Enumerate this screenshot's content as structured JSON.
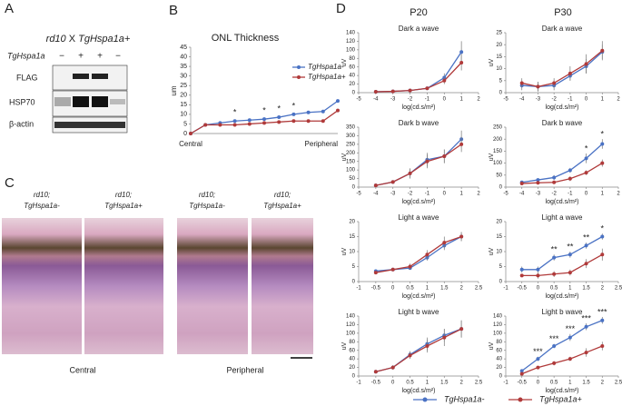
{
  "panel_labels": [
    "A",
    "B",
    "C",
    "D"
  ],
  "panel_a": {
    "title_parts": [
      "rd10",
      "X",
      "TgHspa1a+"
    ],
    "row_label": "TgHspa1a",
    "signs": [
      "−",
      "+",
      "+",
      "−"
    ],
    "blots": [
      "FLAG",
      "HSP70",
      "β-actin"
    ]
  },
  "panel_c": {
    "images": [
      {
        "line1": "rd10;",
        "line2": "TgHspa1a-"
      },
      {
        "line1": "rd10;",
        "line2": "TgHspa1a+"
      },
      {
        "line1": "rd10;",
        "line2": "TgHspa1a-"
      },
      {
        "line1": "rd10;",
        "line2": "TgHspa1a+"
      }
    ],
    "captions": [
      "Central",
      "Peripheral"
    ]
  },
  "panel_d_headers": [
    "P20",
    "P30"
  ],
  "chart_data": [
    {
      "type": "line",
      "title": "ONL Thickness",
      "ylabel": "um",
      "legend": "upper right",
      "categories": [
        "Central",
        null,
        null,
        null,
        null,
        null,
        null,
        null,
        null,
        null,
        "Peripheral"
      ],
      "ylim": [
        0,
        45
      ],
      "yticks": [
        0,
        5,
        10,
        15,
        20,
        25,
        30,
        35,
        40,
        45
      ],
      "annotations": [
        "*",
        "*",
        "*",
        "*"
      ],
      "series": [
        {
          "name": "TgHspa1a-",
          "color": "#4a72c4",
          "values": [
            0,
            4.5,
            5.5,
            6.5,
            7,
            7.5,
            8.5,
            10,
            11,
            11.5,
            17
          ]
        },
        {
          "name": "TgHspa1a+",
          "color": "#b03a3a",
          "values": [
            0,
            4.5,
            4.5,
            4.5,
            5,
            5.5,
            6,
            6.5,
            6.5,
            6.5,
            12
          ]
        }
      ]
    },
    {
      "type": "line",
      "title": "Dark a wave",
      "ylabel": "uV",
      "xlabel": "log(cd.s/m²)",
      "legend": "below",
      "x": [
        -4,
        -3,
        -2,
        -1,
        0,
        1
      ],
      "xlim": [
        -5,
        2
      ],
      "xticks": [
        -5,
        -4,
        -3,
        -2,
        -1,
        0,
        1,
        2
      ],
      "ylim": [
        0,
        140
      ],
      "yticks": [
        0,
        20,
        40,
        60,
        80,
        100,
        120,
        140
      ],
      "annotations": [],
      "series": [
        {
          "name": "TgHspa1a-",
          "color": "#4a72c4",
          "values": [
            2,
            3,
            5,
            10,
            35,
            95
          ],
          "errors": [
            1,
            1,
            2,
            4,
            10,
            25
          ]
        },
        {
          "name": "TgHspa1a+",
          "color": "#b03a3a",
          "values": [
            2,
            3,
            5,
            10,
            28,
            70
          ],
          "errors": [
            1,
            1,
            2,
            3,
            8,
            18
          ]
        }
      ]
    },
    {
      "type": "line",
      "title": "Dark a wave",
      "ylabel": "uV",
      "xlabel": "log(cd.s/m²)",
      "x": [
        -4,
        -3,
        -2,
        -1,
        0,
        1
      ],
      "xlim": [
        -5,
        2
      ],
      "xticks": [
        -5,
        -4,
        -3,
        -2,
        -1,
        0,
        1,
        2
      ],
      "ylim": [
        0,
        25
      ],
      "yticks": [
        0,
        5,
        10,
        15,
        20,
        25
      ],
      "annotations": [],
      "series": [
        {
          "name": "TgHspa1a-",
          "color": "#4a72c4",
          "values": [
            3,
            2.5,
            3,
            7,
            11,
            17
          ],
          "errors": [
            2,
            2,
            2,
            2,
            3,
            3
          ]
        },
        {
          "name": "TgHspa1a+",
          "color": "#b03a3a",
          "values": [
            4,
            2.5,
            4,
            8,
            12,
            17.5
          ],
          "errors": [
            2,
            2,
            2,
            3,
            4,
            4
          ]
        }
      ]
    },
    {
      "type": "line",
      "title": "Dark b wave",
      "ylabel": "uV",
      "xlabel": "log(cd.s/m²)",
      "x": [
        -4,
        -3,
        -2,
        -1,
        0,
        1
      ],
      "xlim": [
        -5,
        2
      ],
      "xticks": [
        -5,
        -4,
        -3,
        -2,
        -1,
        0,
        1,
        2
      ],
      "ylim": [
        0,
        350
      ],
      "yticks": [
        0,
        50,
        100,
        150,
        200,
        250,
        300,
        350
      ],
      "annotations": [],
      "series": [
        {
          "name": "TgHspa1a-",
          "color": "#4a72c4",
          "values": [
            10,
            30,
            80,
            160,
            180,
            280
          ],
          "errors": [
            5,
            10,
            30,
            40,
            40,
            50
          ]
        },
        {
          "name": "TgHspa1a+",
          "color": "#b03a3a",
          "values": [
            10,
            30,
            80,
            150,
            180,
            250
          ],
          "errors": [
            5,
            10,
            25,
            40,
            40,
            45
          ]
        }
      ]
    },
    {
      "type": "line",
      "title": "Dark b wave",
      "ylabel": "uV",
      "xlabel": "log(cd.s/m²)",
      "x": [
        -4,
        -3,
        -2,
        -1,
        0,
        1
      ],
      "xlim": [
        -5,
        2
      ],
      "xticks": [
        -5,
        -4,
        -3,
        -2,
        -1,
        0,
        1,
        2
      ],
      "ylim": [
        0,
        250
      ],
      "yticks": [
        0,
        50,
        100,
        150,
        200,
        250
      ],
      "annotations": [
        {
          "text": "*",
          "x": 0
        },
        {
          "text": "*",
          "x": 1
        }
      ],
      "series": [
        {
          "name": "TgHspa1a-",
          "color": "#4a72c4",
          "values": [
            20,
            30,
            40,
            70,
            120,
            180
          ],
          "errors": [
            5,
            5,
            10,
            10,
            20,
            20
          ]
        },
        {
          "name": "TgHspa1a+",
          "color": "#b03a3a",
          "values": [
            15,
            18,
            20,
            35,
            60,
            100
          ],
          "errors": [
            5,
            5,
            5,
            10,
            10,
            15
          ]
        }
      ]
    },
    {
      "type": "line",
      "title": "Light a wave",
      "ylabel": "uV",
      "xlabel": "log(cd.s/m²)",
      "x": [
        -0.5,
        0,
        0.5,
        1,
        1.5,
        2
      ],
      "xlim": [
        -1,
        2.5
      ],
      "xticks": [
        -1,
        -0.5,
        0,
        0.5,
        1,
        1.5,
        2,
        2.5
      ],
      "ylim": [
        0,
        20
      ],
      "yticks": [
        0,
        5,
        10,
        15,
        20
      ],
      "annotations": [],
      "series": [
        {
          "name": "TgHspa1a-",
          "color": "#4a72c4",
          "values": [
            3.5,
            4,
            4.5,
            8,
            12,
            15
          ],
          "errors": [
            0.5,
            0.5,
            0.5,
            1,
            1.5,
            1.5
          ]
        },
        {
          "name": "TgHspa1a+",
          "color": "#b03a3a",
          "values": [
            3,
            4,
            5,
            9,
            13,
            15
          ],
          "errors": [
            0.5,
            0.5,
            1,
            1.5,
            2,
            1.5
          ]
        }
      ]
    },
    {
      "type": "line",
      "title": "Light a wave",
      "ylabel": "uV",
      "xlabel": "log(cd.s/m²)",
      "x": [
        -0.5,
        0,
        0.5,
        1,
        1.5,
        2
      ],
      "xlim": [
        -1,
        2.5
      ],
      "xticks": [
        -1,
        -0.5,
        0,
        0.5,
        1,
        1.5,
        2,
        2.5
      ],
      "ylim": [
        0,
        20
      ],
      "yticks": [
        0,
        5,
        10,
        15,
        20
      ],
      "annotations": [
        {
          "text": "**",
          "x": 0.5
        },
        {
          "text": "**",
          "x": 1
        },
        {
          "text": "**",
          "x": 1.5
        },
        {
          "text": "*",
          "x": 2
        }
      ],
      "series": [
        {
          "name": "TgHspa1a-",
          "color": "#4a72c4",
          "values": [
            4,
            4,
            8,
            9,
            12,
            15
          ],
          "errors": [
            1,
            1,
            1,
            1,
            1,
            1
          ]
        },
        {
          "name": "TgHspa1a+",
          "color": "#b03a3a",
          "values": [
            2,
            2,
            2.5,
            3,
            6,
            9
          ],
          "errors": [
            0.5,
            1,
            1,
            1,
            1.5,
            2
          ]
        }
      ]
    },
    {
      "type": "line",
      "title": "Light b wave",
      "ylabel": "uV",
      "xlabel": "log(cd.s/m²)",
      "x": [
        -0.5,
        0,
        0.5,
        1,
        1.5,
        2
      ],
      "xlim": [
        -1,
        2.5
      ],
      "xticks": [
        -1,
        -0.5,
        0,
        0.5,
        1,
        1.5,
        2,
        2.5
      ],
      "ylim": [
        0,
        140
      ],
      "yticks": [
        0,
        20,
        40,
        60,
        80,
        100,
        120,
        140
      ],
      "annotations": [],
      "series": [
        {
          "name": "TgHspa1a-",
          "color": "#4a72c4",
          "values": [
            10,
            20,
            50,
            75,
            95,
            110
          ],
          "errors": [
            3,
            5,
            8,
            15,
            15,
            20
          ]
        },
        {
          "name": "TgHspa1a+",
          "color": "#b03a3a",
          "values": [
            10,
            20,
            48,
            70,
            90,
            110
          ],
          "errors": [
            3,
            5,
            8,
            15,
            20,
            20
          ]
        }
      ]
    },
    {
      "type": "line",
      "title": "Light b wave",
      "ylabel": "uV",
      "xlabel": "log(cd.s/m²)",
      "x": [
        -0.5,
        0,
        0.5,
        1,
        1.5,
        2
      ],
      "xlim": [
        -1,
        2.5
      ],
      "xticks": [
        -1,
        -0.5,
        0,
        0.5,
        1,
        1.5,
        2,
        2.5
      ],
      "ylim": [
        0,
        140
      ],
      "yticks": [
        0,
        20,
        40,
        60,
        80,
        100,
        120,
        140
      ],
      "annotations": [
        {
          "text": "***",
          "x": 0
        },
        {
          "text": "***",
          "x": 0.5
        },
        {
          "text": "***",
          "x": 1
        },
        {
          "text": "***",
          "x": 1.5
        },
        {
          "text": "***",
          "x": 2
        }
      ],
      "series": [
        {
          "name": "TgHspa1a-",
          "color": "#4a72c4",
          "values": [
            12,
            40,
            70,
            90,
            115,
            130
          ],
          "errors": [
            3,
            5,
            5,
            8,
            8,
            8
          ]
        },
        {
          "name": "TgHspa1a+",
          "color": "#b03a3a",
          "values": [
            5,
            20,
            30,
            40,
            55,
            70
          ],
          "errors": [
            2,
            3,
            5,
            5,
            10,
            10
          ]
        }
      ]
    }
  ]
}
